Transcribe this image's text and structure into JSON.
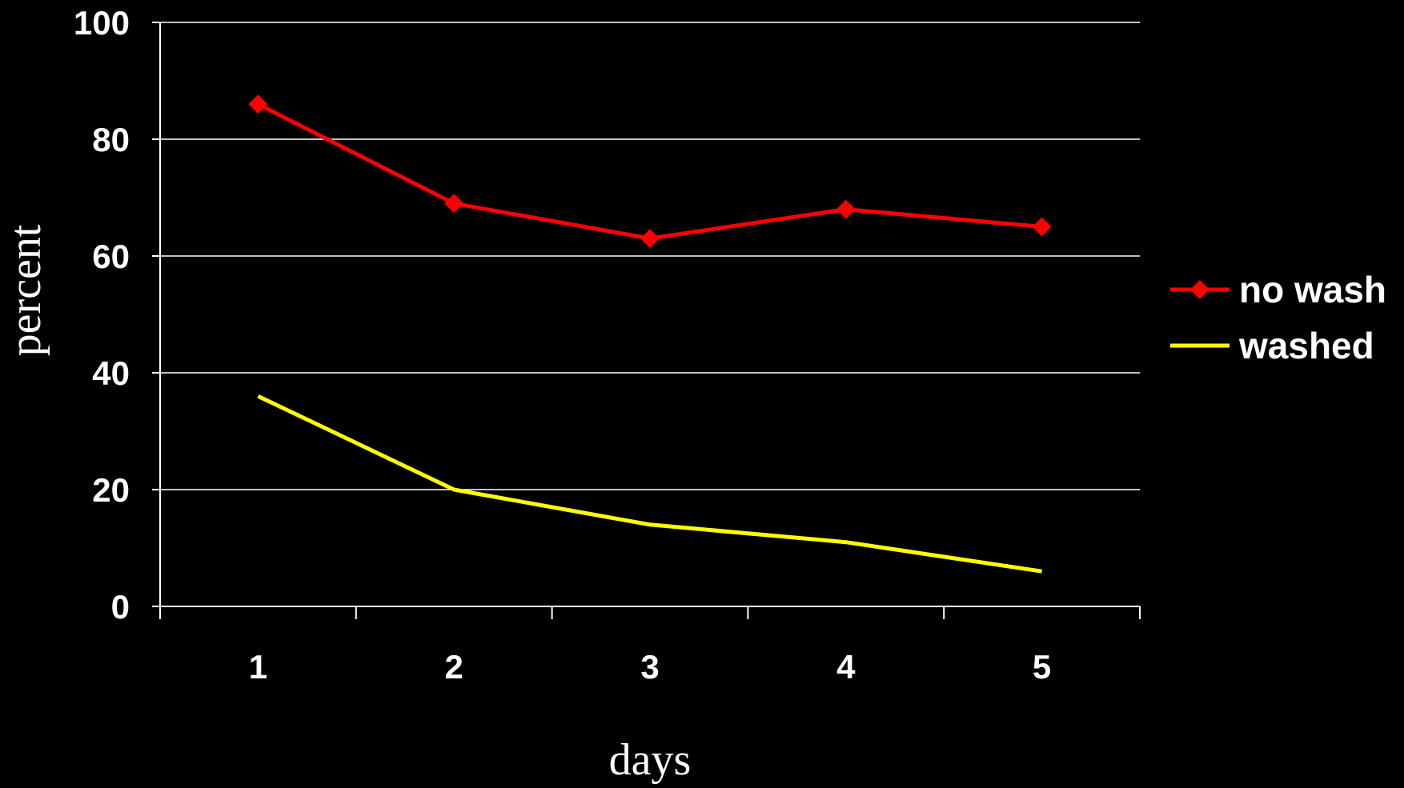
{
  "chart_data": {
    "type": "line",
    "title": "",
    "xlabel": "days",
    "ylabel": "percent",
    "x": [
      1,
      2,
      3,
      4,
      5
    ],
    "categories": [
      "1",
      "2",
      "3",
      "4",
      "5"
    ],
    "ylim": [
      0,
      100
    ],
    "yticks": [
      "0",
      "20",
      "40",
      "60",
      "80",
      "100"
    ],
    "grid": true,
    "legend": "right",
    "series": [
      {
        "name": "no wash",
        "values": [
          86,
          69,
          63,
          68,
          65
        ],
        "color": "#ff0000",
        "marker": "diamond"
      },
      {
        "name": "washed",
        "values": [
          36,
          20,
          14,
          11,
          6
        ],
        "color": "#ffff00",
        "marker": "none"
      }
    ],
    "background": "#000000",
    "axis_color": "#ffffff",
    "text_color": "#ffffff"
  }
}
